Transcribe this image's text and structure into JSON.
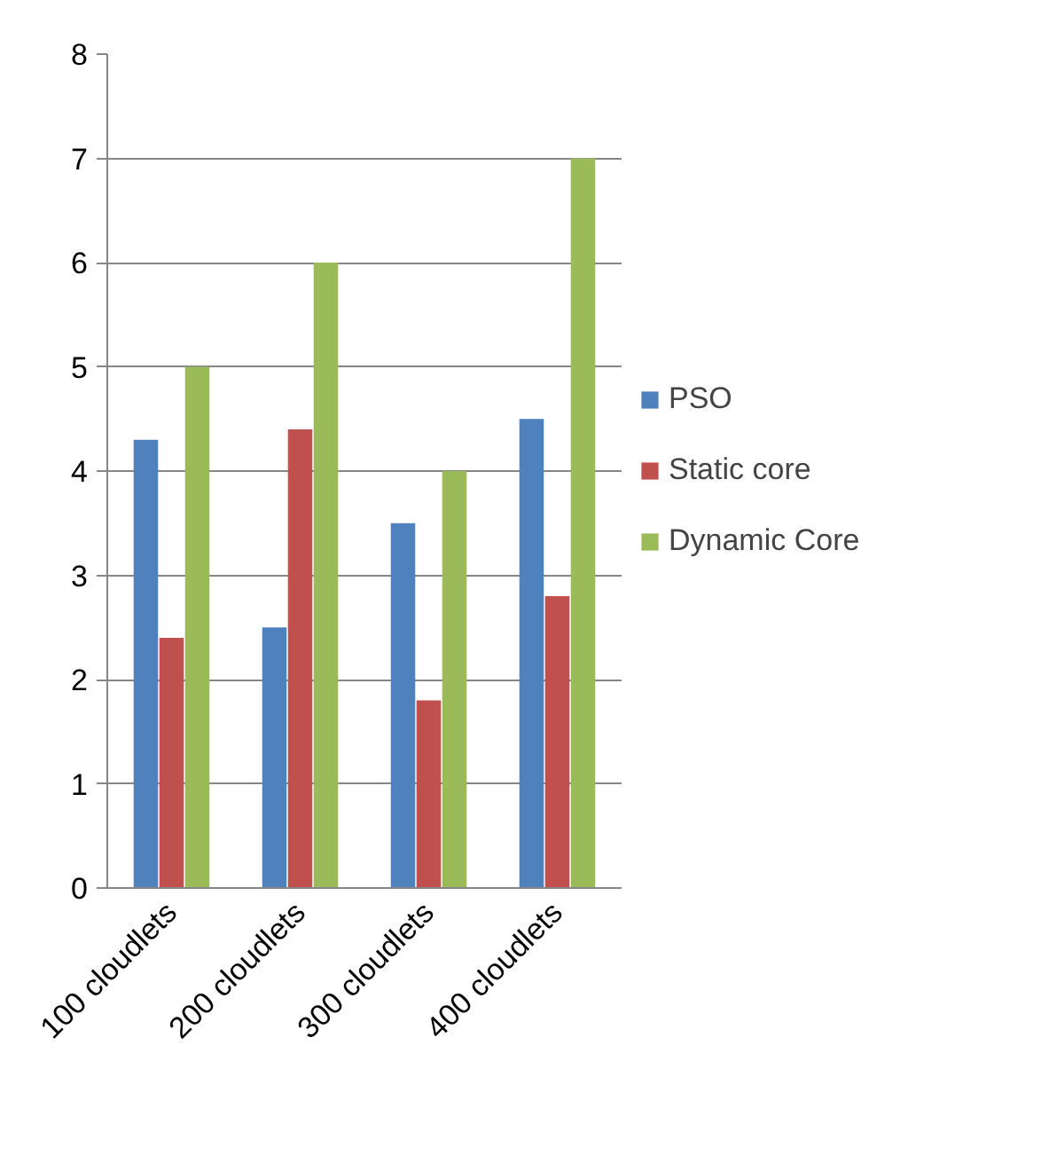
{
  "chart_data": {
    "type": "bar",
    "categories": [
      "100 cloudlets",
      "200 cloudlets",
      "300 cloudlets",
      "400 cloudlets"
    ],
    "series": [
      {
        "name": "PSO",
        "color": "#4f81bd",
        "values": [
          4.3,
          2.5,
          3.5,
          4.5
        ]
      },
      {
        "name": "Static core",
        "color": "#c0504d",
        "values": [
          2.4,
          4.4,
          1.8,
          2.8
        ]
      },
      {
        "name": "Dynamic Core",
        "color": "#9bbb59",
        "values": [
          5,
          6,
          4,
          7
        ]
      }
    ],
    "ylim": [
      0,
      8
    ],
    "yticks": [
      0,
      1,
      2,
      3,
      4,
      5,
      6,
      7,
      8
    ],
    "grid": "y",
    "legend": "right"
  }
}
